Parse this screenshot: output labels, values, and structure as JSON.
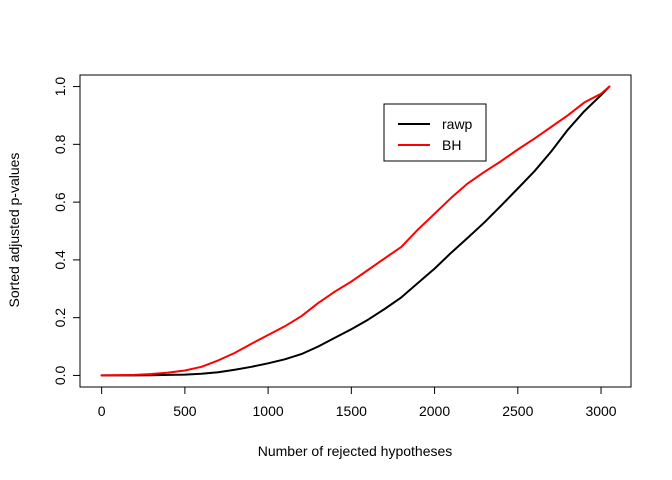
{
  "chart_data": {
    "type": "line",
    "title": "",
    "xlabel": "Number of rejected hypotheses",
    "ylabel": "Sorted adjusted p-values",
    "xlim": [
      -130,
      3180
    ],
    "ylim": [
      -0.04,
      1.04
    ],
    "xticks": [
      0,
      500,
      1000,
      1500,
      2000,
      2500,
      3000
    ],
    "yticks": [
      0.0,
      0.2,
      0.4,
      0.6,
      0.8,
      1.0
    ],
    "xtick_labels": [
      "0",
      "500",
      "1000",
      "1500",
      "2000",
      "2500",
      "3000"
    ],
    "ytick_labels": [
      "0.0",
      "0.2",
      "0.4",
      "0.6",
      "0.8",
      "1.0"
    ],
    "grid": false,
    "legend_position": "top-right",
    "series": [
      {
        "name": "rawp",
        "color": "#000000",
        "x": [
          0,
          200,
          300,
          400,
          500,
          600,
          700,
          800,
          900,
          1000,
          1100,
          1200,
          1300,
          1400,
          1500,
          1600,
          1700,
          1800,
          1900,
          2000,
          2100,
          2200,
          2300,
          2400,
          2500,
          2600,
          2700,
          2800,
          2900,
          3000,
          3050
        ],
        "y": [
          0.0,
          0.0,
          0.001,
          0.002,
          0.003,
          0.006,
          0.011,
          0.02,
          0.03,
          0.042,
          0.056,
          0.074,
          0.1,
          0.13,
          0.16,
          0.193,
          0.23,
          0.27,
          0.32,
          0.37,
          0.425,
          0.477,
          0.53,
          0.588,
          0.647,
          0.707,
          0.775,
          0.85,
          0.915,
          0.97,
          1.0
        ]
      },
      {
        "name": "BH",
        "color": "#ff0000",
        "x": [
          0,
          200,
          300,
          400,
          500,
          600,
          700,
          800,
          900,
          1000,
          1100,
          1200,
          1300,
          1400,
          1500,
          1600,
          1700,
          1800,
          1900,
          2000,
          2100,
          2200,
          2300,
          2400,
          2500,
          2600,
          2700,
          2800,
          2900,
          3000,
          3050
        ],
        "y": [
          0.0,
          0.002,
          0.005,
          0.01,
          0.017,
          0.03,
          0.052,
          0.078,
          0.11,
          0.14,
          0.17,
          0.205,
          0.25,
          0.29,
          0.325,
          0.365,
          0.405,
          0.445,
          0.505,
          0.56,
          0.615,
          0.665,
          0.705,
          0.742,
          0.782,
          0.82,
          0.86,
          0.9,
          0.945,
          0.975,
          1.0
        ]
      }
    ]
  }
}
